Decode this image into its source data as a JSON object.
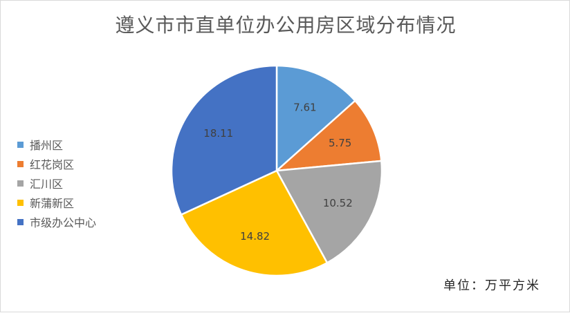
{
  "chart_data": {
    "type": "pie",
    "title": "遵义市市直单位办公用房区域分布情况",
    "unit_note": "单位：万平方米",
    "categories": [
      "播州区",
      "红花岗区",
      "汇川区",
      "新蒲新区",
      "市级办公中心"
    ],
    "values": [
      7.61,
      5.75,
      10.52,
      14.82,
      18.11
    ],
    "value_labels": [
      "7.61",
      "5.75",
      "10.52",
      "14.82",
      "18.11"
    ],
    "colors": [
      "#5b9bd5",
      "#ed7d31",
      "#a5a5a5",
      "#ffc000",
      "#4472c4"
    ],
    "legend_position": "left"
  }
}
